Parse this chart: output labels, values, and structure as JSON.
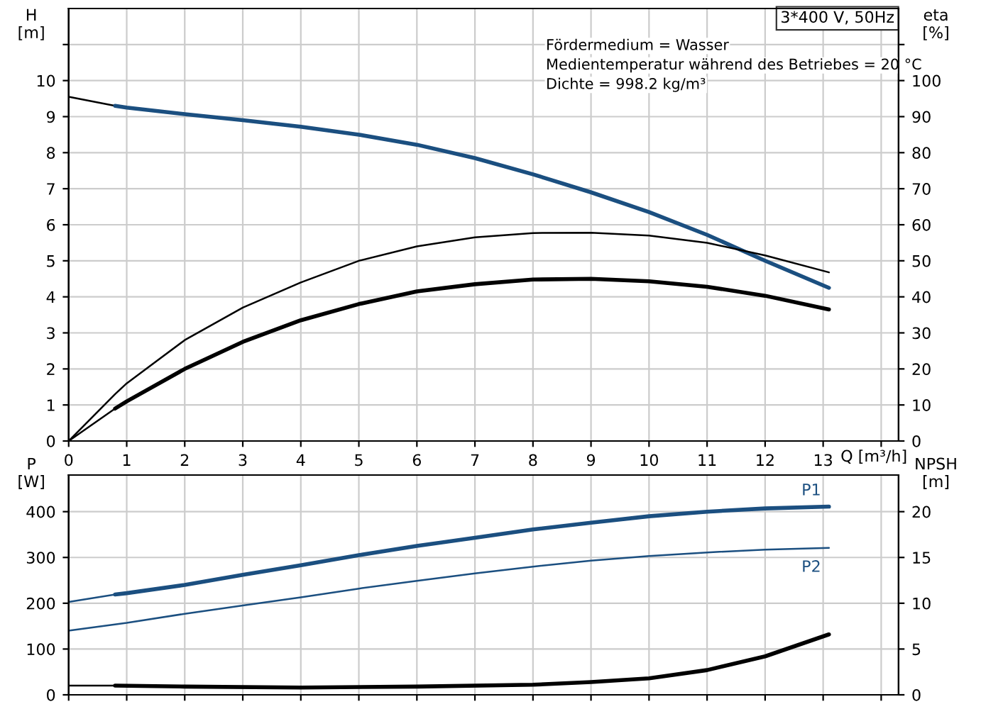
{
  "chart_data": [
    {
      "type": "line",
      "xlabel": "Q [m³/h]",
      "ylabel": "H\n[m]",
      "y2label": "eta\n[%]",
      "annotations": [
        "3*400 V, 50Hz",
        "Fördermedium = Wasser",
        "Medientemperatur während des Betriebes = 20 °C",
        "Dichte = 998.2 kg/m³"
      ],
      "xlim": [
        0,
        14.3
      ],
      "xticks": [
        0,
        1,
        2,
        3,
        4,
        5,
        6,
        7,
        8,
        9,
        10,
        11,
        12,
        13,
        {
          "value": 14,
          "label": null
        }
      ],
      "ylim": [
        0,
        12
      ],
      "yticks": [
        0,
        1,
        2,
        3,
        4,
        5,
        6,
        7,
        8,
        9,
        10,
        {
          "value": 11,
          "label": null
        }
      ],
      "y2lim": [
        0,
        120
      ],
      "y2ticks": [
        0,
        10,
        20,
        30,
        40,
        50,
        60,
        70,
        80,
        90,
        100,
        {
          "value": 110,
          "label": null
        }
      ],
      "grid": true,
      "legend": false,
      "series": [
        {
          "color": "#000000",
          "x": [
            0,
            0.8
          ],
          "values": [
            9.55,
            9.3
          ]
        },
        {
          "color": "#1b4f80",
          "x": [
            0.8,
            1,
            2,
            3,
            4,
            5,
            6,
            7,
            8,
            9,
            10,
            11,
            12,
            13.1
          ],
          "values": [
            9.3,
            9.25,
            9.07,
            8.9,
            8.72,
            8.5,
            8.22,
            7.85,
            7.4,
            6.9,
            6.35,
            5.72,
            5.0,
            4.25
          ]
        },
        {
          "color": "#000000",
          "axis": "y2",
          "x": [
            0,
            0.8,
            1,
            2,
            3,
            4,
            5,
            6,
            7,
            8,
            9,
            10,
            11,
            12,
            13.1
          ],
          "values": [
            0,
            13,
            16,
            28,
            37,
            44,
            50,
            54,
            56.5,
            57.7,
            57.8,
            57,
            55,
            51.5,
            46.8
          ]
        },
        {
          "color": "#000000",
          "axis": "y2",
          "x": [
            0,
            0.8
          ],
          "values": [
            0,
            9
          ]
        },
        {
          "color": "#000000",
          "axis": "y2",
          "x": [
            0.8,
            1,
            2,
            3,
            4,
            5,
            6,
            7,
            8,
            9,
            10,
            11,
            12,
            13.1
          ],
          "values": [
            9,
            11,
            20,
            27.5,
            33.5,
            38,
            41.5,
            43.5,
            44.8,
            45,
            44.3,
            42.8,
            40.3,
            36.5
          ]
        }
      ]
    },
    {
      "type": "line",
      "ylabel": "P\n[W]",
      "y2label": "NPSH\n[m]",
      "tick_labels": "y",
      "xlim": [
        0,
        14.3
      ],
      "xticks": [
        0,
        1,
        2,
        3,
        4,
        5,
        6,
        7,
        8,
        9,
        10,
        11,
        12,
        13,
        14
      ],
      "ylim": [
        0,
        480
      ],
      "yticks": [
        0,
        100,
        200,
        300,
        400
      ],
      "y2lim": [
        0,
        24
      ],
      "y2ticks": [
        0,
        5,
        10,
        15,
        20
      ],
      "grid": true,
      "legend": false,
      "series": [
        {
          "color": "#1b4f80",
          "x": [
            0,
            0.8
          ],
          "values": [
            203,
            219
          ]
        },
        {
          "name": "P1",
          "color": "#1b4f80",
          "x": [
            0.8,
            1,
            2,
            3,
            4,
            5,
            6,
            7,
            8,
            9,
            10,
            11,
            12,
            13.1
          ],
          "values": [
            219,
            222,
            240,
            262,
            283,
            305,
            325,
            343,
            361,
            376,
            390,
            400,
            407,
            411
          ]
        },
        {
          "name": "P2",
          "color": "#1b4f80",
          "x": [
            0,
            1,
            2,
            3,
            4,
            5,
            6,
            7,
            8,
            9,
            10,
            11,
            12,
            13.1
          ],
          "values": [
            140,
            157,
            177,
            195,
            213,
            232,
            249,
            265,
            280,
            293,
            303,
            311,
            317,
            321
          ]
        },
        {
          "color": "#000000",
          "axis": "y2",
          "x": [
            0,
            0.8
          ],
          "values": [
            1.0,
            1.0
          ]
        },
        {
          "color": "#000000",
          "axis": "y2",
          "x": [
            0.8,
            2,
            4,
            6,
            8,
            9,
            10,
            11,
            12,
            13.1
          ],
          "values": [
            1.0,
            0.9,
            0.8,
            0.9,
            1.1,
            1.4,
            1.8,
            2.7,
            4.2,
            6.6
          ]
        }
      ]
    }
  ]
}
